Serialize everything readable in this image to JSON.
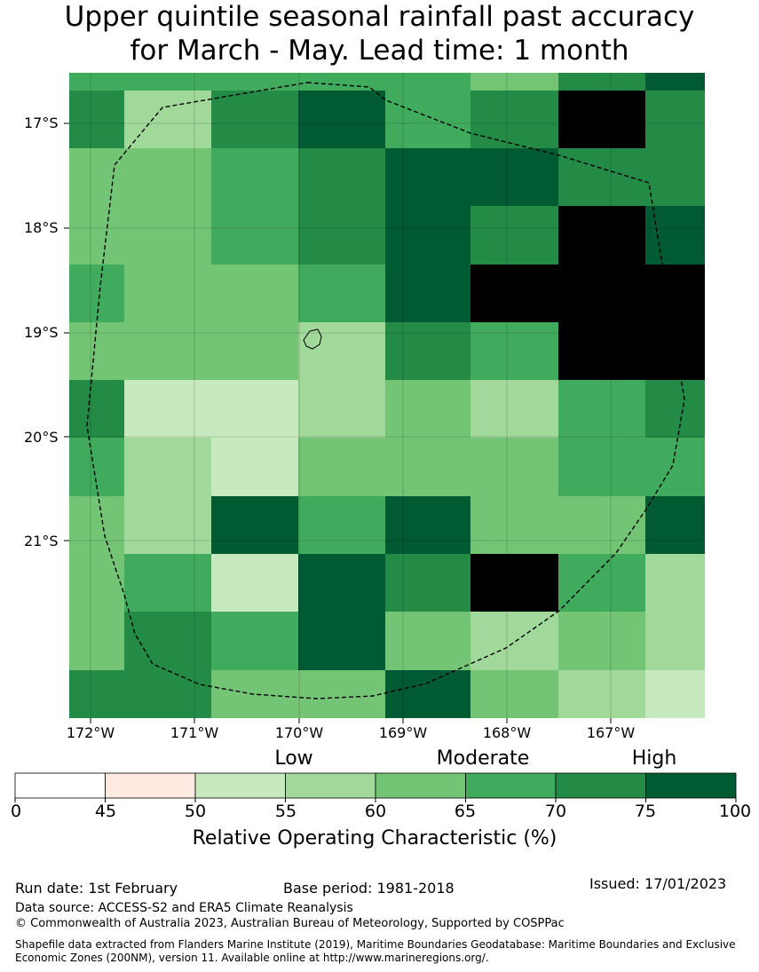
{
  "title_line1": "Upper quintile seasonal rainfall past accuracy",
  "title_line2": "for March - May. Lead time: 1 month",
  "map": {
    "lat_labels": [
      "17°S",
      "18°S",
      "19°S",
      "20°S",
      "21°S"
    ],
    "lon_labels": [
      "172°W",
      "171°W",
      "170°W",
      "169°W",
      "168°W",
      "167°W"
    ],
    "grid": [
      [
        5,
        5,
        5,
        5,
        5,
        4,
        6,
        7
      ],
      [
        6,
        3,
        6,
        7,
        5,
        6,
        8,
        6
      ],
      [
        4,
        4,
        5,
        6,
        7,
        7,
        6,
        6
      ],
      [
        4,
        4,
        5,
        6,
        7,
        6,
        8,
        7
      ],
      [
        5,
        4,
        4,
        5,
        7,
        8,
        8,
        8
      ],
      [
        4,
        4,
        4,
        3,
        6,
        5,
        8,
        8
      ],
      [
        6,
        2,
        2,
        3,
        4,
        3,
        5,
        6
      ],
      [
        5,
        3,
        2,
        4,
        4,
        4,
        5,
        5
      ],
      [
        4,
        3,
        7,
        5,
        7,
        4,
        4,
        7
      ],
      [
        4,
        5,
        2,
        7,
        6,
        8,
        5,
        3
      ],
      [
        4,
        6,
        5,
        7,
        4,
        3,
        4,
        3
      ],
      [
        6,
        6,
        4,
        4,
        7,
        4,
        3,
        2
      ]
    ]
  },
  "colorbar": {
    "colors": [
      "#ffffff",
      "#feeae1",
      "#c7e9c0",
      "#a1d99b",
      "#74c476",
      "#41ab5d",
      "#238b45",
      "#005a32"
    ],
    "ticks": [
      "0",
      "45",
      "50",
      "55",
      "60",
      "65",
      "70",
      "75",
      "100"
    ],
    "bands": [
      "Low",
      "Moderate",
      "High"
    ],
    "label": "Relative Operating Characteristic (%)"
  },
  "footer": {
    "run_date": "Run date: 1st February",
    "base_period": "Base period: 1981-2018",
    "issued": "Issued: 17/01/2023",
    "data_source": "Data source: ACCESS-S2 and ERA5 Climate Reanalysis",
    "copyright": "© Commonwealth of Australia 2023, Australian Bureau of Meteorology, Supported by COSPPac",
    "shapefile": "Shapefile data extracted from Flanders Marine Institute (2019), Maritime Boundaries Geodatabase: Maritime Boundaries and Exclusive Economic Zones (200NM), version 11. Available online at http://www.marineregions.org/."
  }
}
